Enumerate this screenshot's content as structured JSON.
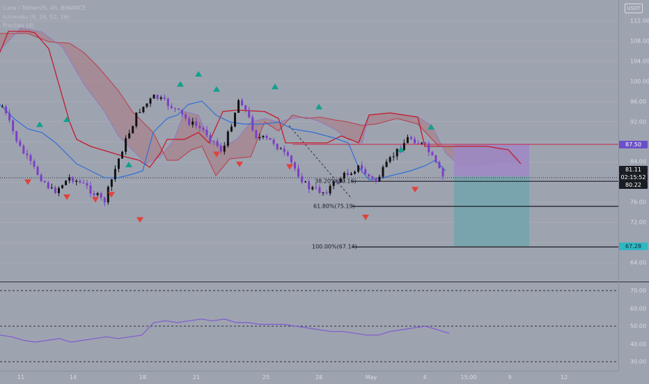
{
  "legend": {
    "symbol": "Luna / TetherUS, 4h, BINANCE",
    "ichimoku": "Ichimoku (9, 26, 52, 26)",
    "fractals": "Fractals (4)"
  },
  "currency_badge": "USDT",
  "price_axis": [
    "112.00",
    "108.00",
    "104.00",
    "100.00",
    "96.00",
    "92.00",
    "84.00",
    "76.00",
    "72.00",
    "64.00"
  ],
  "oscillator_axis": [
    "70.00",
    "60.00",
    "50.00",
    "40.00",
    "30.00"
  ],
  "time_axis": [
    "11",
    "14",
    "18",
    "21",
    "25",
    "28",
    "May",
    "4",
    "15:00",
    "9",
    "12"
  ],
  "price_labels": {
    "target": "87.50",
    "last_price": "81.11",
    "countdown": "02:15:52",
    "prev": "80.22",
    "stop": "67.28"
  },
  "fib_levels": [
    {
      "label": "38.20%(80.16)",
      "price": 80.16
    },
    {
      "label": "61.80%(75.19)",
      "price": 75.19
    },
    {
      "label": "100.00%(67.14)",
      "price": 67.14
    }
  ],
  "colors": {
    "background": "#9ea3b0",
    "bull_candle": "#111111",
    "bear_candle": "#7b3fc6",
    "fractal_up": "#12a08c",
    "fractal_down": "#e0433a",
    "kijun": "#c41a2a",
    "tenkan": "#2f6fd6",
    "cloud": "#a9797f",
    "oscillator": "#7e5bd0",
    "target_zone": "#9d88c6",
    "stop_zone": "#72a4ad",
    "target_badge": "#6a4fc9",
    "stop_badge": "#2fb7c3"
  },
  "chart_data": [
    {
      "type": "candlestick",
      "title": "Luna / TetherUS, 4h, BINANCE",
      "ylim": [
        62,
        114
      ],
      "x": [
        "11",
        "14",
        "18",
        "21",
        "25",
        "28",
        "May",
        "4"
      ],
      "closes_approx": [
        95,
        87,
        82,
        78,
        81,
        79,
        76,
        86,
        94,
        97,
        95,
        92,
        90,
        86,
        97,
        89,
        88,
        84,
        79,
        78,
        81,
        83,
        80,
        85,
        89,
        87,
        81
      ],
      "last_price": 81.11,
      "fractals_up": [
        {
          "x": "12",
          "price": 91.5
        },
        {
          "x": "13",
          "price": 92.5
        },
        {
          "x": "17",
          "price": 83.5
        },
        {
          "x": "20",
          "price": 99.5
        },
        {
          "x": "21",
          "price": 101.5
        },
        {
          "x": "22",
          "price": 98.5
        },
        {
          "x": "25",
          "price": 99
        },
        {
          "x": "27",
          "price": 95
        },
        {
          "x": "May 2",
          "price": 86.5
        },
        {
          "x": "4",
          "price": 91
        }
      ],
      "fractals_down": [
        {
          "x": "11",
          "price": 80
        },
        {
          "x": "13",
          "price": 77
        },
        {
          "x": "14",
          "price": 76.5
        },
        {
          "x": "15",
          "price": 77.5
        },
        {
          "x": "18",
          "price": 72.5
        },
        {
          "x": "22",
          "price": 85.5
        },
        {
          "x": "24",
          "price": 83.5
        },
        {
          "x": "26",
          "price": 83
        },
        {
          "x": "May 1",
          "price": 73
        },
        {
          "x": "May 3",
          "price": 78.5
        }
      ],
      "fibonacci": [
        {
          "level": "38.20%",
          "price": 80.16
        },
        {
          "level": "61.80%",
          "price": 75.19
        },
        {
          "level": "100.00%",
          "price": 67.14
        }
      ],
      "position": {
        "entry": 81.11,
        "target": 87.5,
        "stop": 67.28
      }
    },
    {
      "type": "line",
      "ylim": [
        25,
        75
      ],
      "hlines": [
        70,
        50,
        30
      ],
      "values_approx": [
        45,
        44,
        42,
        41,
        42,
        43,
        41,
        42,
        43,
        44,
        43,
        44,
        45,
        52,
        53,
        52,
        53,
        54,
        53,
        54,
        52,
        52,
        51,
        51,
        51,
        50,
        49,
        48,
        47,
        47,
        46,
        45,
        45,
        47,
        48,
        49,
        50,
        48,
        46
      ]
    }
  ]
}
